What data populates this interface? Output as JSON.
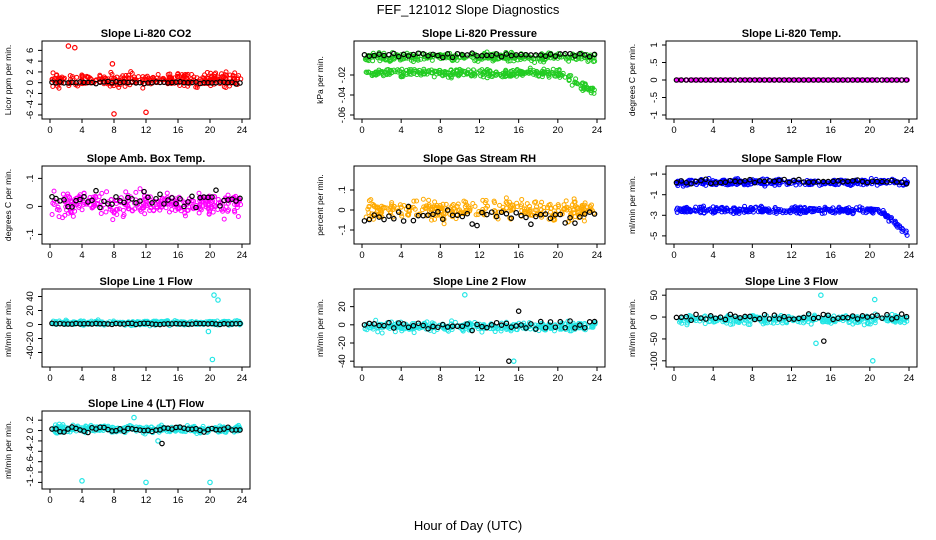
{
  "figure": {
    "title": "FEF_121012  Slope Diagnostics",
    "xlabel": "Hour of Day (UTC)"
  },
  "colors": {
    "reference": "#000000",
    "red": "#ff0000",
    "green": "#22cc22",
    "magenta": "#ff00ff",
    "orange": "#ffaa00",
    "blue": "#0000ff",
    "cyan": "#22e6e6"
  },
  "chart_data": [
    {
      "type": "scatter",
      "title": "Slope Li-820 CO2",
      "ylabel": "Licor ppm per min.",
      "xlim": [
        0,
        24
      ],
      "xticks": [
        0,
        4,
        8,
        12,
        16,
        20,
        24
      ],
      "ylim": [
        -6,
        7
      ],
      "yticks": [
        -6,
        -4,
        -2,
        0,
        2,
        4,
        6
      ],
      "series": [
        {
          "name": "all",
          "color": "red",
          "center": 0.5,
          "spread": 1.1,
          "outliers": [
            [
              2.3,
              6.8
            ],
            [
              3.1,
              6.5
            ],
            [
              8,
              -5.8
            ],
            [
              12,
              -5.5
            ],
            [
              7.8,
              3.5
            ]
          ]
        },
        {
          "name": "hourly",
          "color": "reference",
          "center": 0,
          "spread": 0.2
        }
      ]
    },
    {
      "type": "scatter",
      "title": "Slope Li-820 Pressure",
      "ylabel": "kPa per min.",
      "xlim": [
        0,
        24
      ],
      "xticks": [
        0,
        4,
        8,
        12,
        16,
        20,
        24
      ],
      "ylim": [
        -0.06,
        0.01
      ],
      "yticks": [
        -0.06,
        -0.04,
        -0.02
      ],
      "series": [
        {
          "name": "upper",
          "color": "green",
          "center": -0.002,
          "spread": 0.004
        },
        {
          "name": "lower",
          "color": "green",
          "center": -0.018,
          "spread": 0.004
        },
        {
          "name": "hourly",
          "color": "reference",
          "center": 0,
          "spread": 0.002
        }
      ]
    },
    {
      "type": "scatter",
      "title": "Slope Li-820 Temp.",
      "ylabel": "degrees C per min.",
      "xlim": [
        0,
        24
      ],
      "xticks": [
        0,
        4,
        8,
        12,
        16,
        20,
        24
      ],
      "ylim": [
        -1,
        1
      ],
      "yticks": [
        -1,
        -0.5,
        0,
        0.5,
        1
      ],
      "series": [
        {
          "name": "all",
          "color": "magenta",
          "center": 0,
          "spread": 0
        },
        {
          "name": "hourly",
          "color": "reference",
          "center": 0,
          "spread": 0
        }
      ]
    },
    {
      "type": "scatter",
      "title": "Slope Amb. Box Temp.",
      "ylabel": "degrees C per min.",
      "xlim": [
        0,
        24
      ],
      "xticks": [
        0,
        4,
        8,
        12,
        16,
        20,
        24
      ],
      "ylim": [
        -0.12,
        0.13
      ],
      "yticks": [
        -0.1,
        0,
        0.1
      ],
      "series": [
        {
          "name": "all",
          "color": "magenta",
          "center": 0.01,
          "spread": 0.04
        },
        {
          "name": "hourly",
          "color": "reference",
          "center": 0.02,
          "spread": 0.03
        }
      ]
    },
    {
      "type": "scatter",
      "title": "Slope Gas Stream RH",
      "ylabel": "percent per min.",
      "xlim": [
        0,
        24
      ],
      "xticks": [
        0,
        4,
        8,
        12,
        16,
        20,
        24
      ],
      "ylim": [
        -0.15,
        0.2
      ],
      "yticks": [
        -0.1,
        0,
        0.1
      ],
      "series": [
        {
          "name": "all",
          "color": "orange",
          "center": 0,
          "spread": 0.05
        },
        {
          "name": "hourly",
          "color": "reference",
          "center": -0.03,
          "spread": 0.04
        }
      ]
    },
    {
      "type": "scatter",
      "title": "Slope Sample Flow",
      "ylabel": "ml/min per min.",
      "xlim": [
        0,
        24
      ],
      "xticks": [
        0,
        4,
        8,
        12,
        16,
        20,
        24
      ],
      "ylim": [
        -5.4,
        1.4
      ],
      "yticks": [
        -5,
        -3,
        -1,
        1
      ],
      "series": [
        {
          "name": "upper",
          "color": "blue",
          "center": 0.2,
          "spread": 0.3
        },
        {
          "name": "lower",
          "color": "blue",
          "center": -2.5,
          "spread": 0.3
        },
        {
          "name": "hourly",
          "color": "reference",
          "center": 0.3,
          "spread": 0.2
        }
      ]
    },
    {
      "type": "scatter",
      "title": "Slope Line 1 Flow",
      "ylabel": "ml/min per min.",
      "xlim": [
        0,
        24
      ],
      "xticks": [
        0,
        4,
        8,
        12,
        16,
        20,
        24
      ],
      "ylim": [
        -55,
        45
      ],
      "yticks": [
        -40,
        -20,
        0,
        20,
        40
      ],
      "series": [
        {
          "name": "all",
          "color": "cyan",
          "center": 2,
          "spread": 3,
          "outliers": [
            [
              20.5,
              42
            ],
            [
              21,
              35
            ],
            [
              20.3,
              -50
            ],
            [
              19.8,
              -10
            ]
          ]
        },
        {
          "name": "hourly",
          "color": "reference",
          "center": 1,
          "spread": 1
        }
      ]
    },
    {
      "type": "scatter",
      "title": "Slope Line 2 Flow",
      "ylabel": "ml/min per min.",
      "xlim": [
        0,
        24
      ],
      "xticks": [
        0,
        4,
        8,
        12,
        16,
        20,
        24
      ],
      "ylim": [
        -42,
        35
      ],
      "yticks": [
        -40,
        -20,
        0,
        20
      ],
      "series": [
        {
          "name": "all",
          "color": "cyan",
          "center": -2,
          "spread": 5,
          "outliers": [
            [
              10.5,
              33
            ],
            [
              15.5,
              -40
            ]
          ]
        },
        {
          "name": "hourly",
          "color": "reference",
          "center": 0,
          "spread": 5,
          "outliers": [
            [
              15,
              -40
            ],
            [
              16,
              15
            ]
          ]
        }
      ]
    },
    {
      "type": "scatter",
      "title": "Slope Line 3 Flow",
      "ylabel": "ml/min per min.",
      "xlim": [
        0,
        24
      ],
      "xticks": [
        0,
        4,
        8,
        12,
        16,
        20,
        24
      ],
      "ylim": [
        -105,
        55
      ],
      "yticks": [
        -100,
        -50,
        0,
        50
      ],
      "series": [
        {
          "name": "all",
          "color": "cyan",
          "center": -5,
          "spread": 10,
          "outliers": [
            [
              15,
              50
            ],
            [
              20.3,
              -100
            ],
            [
              14.5,
              -60
            ],
            [
              20.5,
              40
            ]
          ]
        },
        {
          "name": "hourly",
          "color": "reference",
          "center": 0,
          "spread": 8,
          "outliers": [
            [
              15.3,
              -55
            ]
          ]
        }
      ]
    },
    {
      "type": "scatter",
      "title": "Slope Line 4 (LT) Flow",
      "ylabel": "ml/min per min.",
      "xlim": [
        0,
        24
      ],
      "xticks": [
        0,
        4,
        8,
        12,
        16,
        20,
        24
      ],
      "ylim": [
        -1.05,
        0.3
      ],
      "yticks": [
        -1,
        -0.8,
        -0.6,
        -0.4,
        -0.2,
        0,
        0.2
      ],
      "series": [
        {
          "name": "all",
          "color": "cyan",
          "center": 0.03,
          "spread": 0.07,
          "outliers": [
            [
              4,
              -0.97
            ],
            [
              12,
              -1.0
            ],
            [
              20,
              -1.0
            ],
            [
              10.5,
              0.25
            ],
            [
              13.5,
              -0.2
            ]
          ]
        },
        {
          "name": "hourly",
          "color": "reference",
          "center": 0.02,
          "spread": 0.06,
          "outliers": [
            [
              14,
              -0.25
            ]
          ]
        }
      ]
    }
  ]
}
